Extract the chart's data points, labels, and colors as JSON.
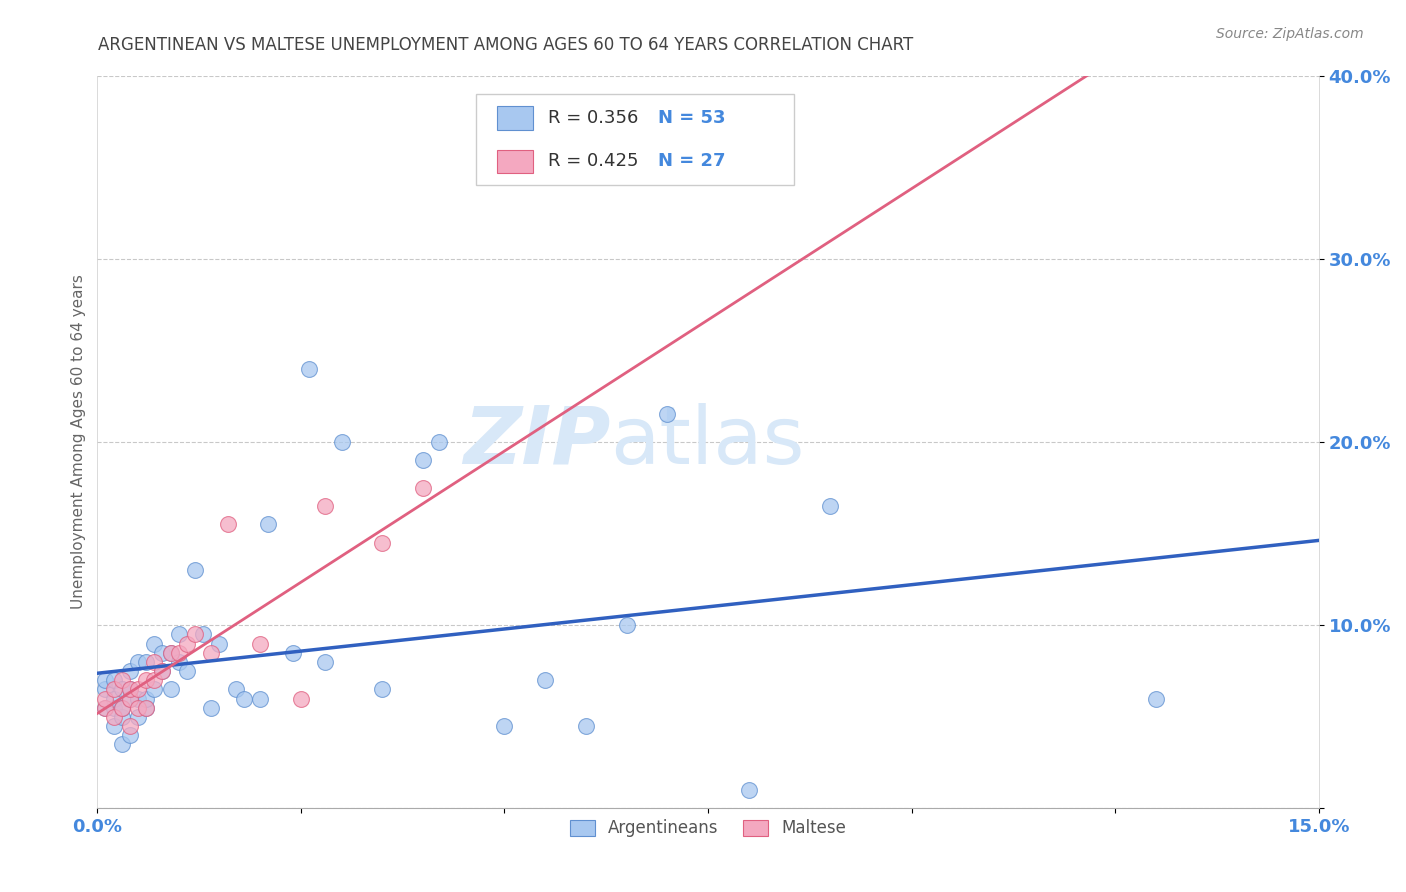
{
  "title": "ARGENTINEAN VS MALTESE UNEMPLOYMENT AMONG AGES 60 TO 64 YEARS CORRELATION CHART",
  "source": "Source: ZipAtlas.com",
  "ylabel": "Unemployment Among Ages 60 to 64 years",
  "xlim": [
    0.0,
    0.15
  ],
  "ylim": [
    0.0,
    0.4
  ],
  "blue_R": 0.356,
  "blue_N": 53,
  "pink_R": 0.425,
  "pink_N": 27,
  "blue_color": "#A8C8F0",
  "pink_color": "#F4A8C0",
  "blue_edge_color": "#6090D0",
  "pink_edge_color": "#E06080",
  "blue_line_color": "#3060C0",
  "pink_line_color": "#E06080",
  "grid_color": "#BBBBBB",
  "title_color": "#444444",
  "axis_tick_color": "#4488DD",
  "ylabel_color": "#666666",
  "watermark_color": "#D8E8F8",
  "legend_label1": "Argentineans",
  "legend_label2": "Maltese",
  "argentinean_x": [
    0.001,
    0.001,
    0.001,
    0.002,
    0.002,
    0.002,
    0.002,
    0.003,
    0.003,
    0.003,
    0.003,
    0.004,
    0.004,
    0.004,
    0.004,
    0.005,
    0.005,
    0.005,
    0.006,
    0.006,
    0.006,
    0.007,
    0.007,
    0.008,
    0.008,
    0.009,
    0.009,
    0.01,
    0.01,
    0.011,
    0.012,
    0.013,
    0.014,
    0.015,
    0.017,
    0.018,
    0.02,
    0.021,
    0.024,
    0.026,
    0.028,
    0.03,
    0.035,
    0.04,
    0.042,
    0.05,
    0.055,
    0.06,
    0.065,
    0.07,
    0.08,
    0.09,
    0.13
  ],
  "argentinean_y": [
    0.055,
    0.065,
    0.07,
    0.045,
    0.055,
    0.06,
    0.07,
    0.035,
    0.05,
    0.055,
    0.065,
    0.04,
    0.06,
    0.065,
    0.075,
    0.05,
    0.06,
    0.08,
    0.055,
    0.06,
    0.08,
    0.065,
    0.09,
    0.075,
    0.085,
    0.065,
    0.085,
    0.08,
    0.095,
    0.075,
    0.13,
    0.095,
    0.055,
    0.09,
    0.065,
    0.06,
    0.06,
    0.155,
    0.085,
    0.24,
    0.08,
    0.2,
    0.065,
    0.19,
    0.2,
    0.045,
    0.07,
    0.045,
    0.1,
    0.215,
    0.01,
    0.165,
    0.06
  ],
  "maltese_x": [
    0.001,
    0.001,
    0.002,
    0.002,
    0.003,
    0.003,
    0.004,
    0.004,
    0.004,
    0.005,
    0.005,
    0.006,
    0.006,
    0.007,
    0.007,
    0.008,
    0.009,
    0.01,
    0.011,
    0.012,
    0.014,
    0.016,
    0.02,
    0.025,
    0.028,
    0.035,
    0.04
  ],
  "maltese_y": [
    0.055,
    0.06,
    0.05,
    0.065,
    0.055,
    0.07,
    0.045,
    0.06,
    0.065,
    0.055,
    0.065,
    0.055,
    0.07,
    0.07,
    0.08,
    0.075,
    0.085,
    0.085,
    0.09,
    0.095,
    0.085,
    0.155,
    0.09,
    0.06,
    0.165,
    0.145,
    0.175
  ]
}
